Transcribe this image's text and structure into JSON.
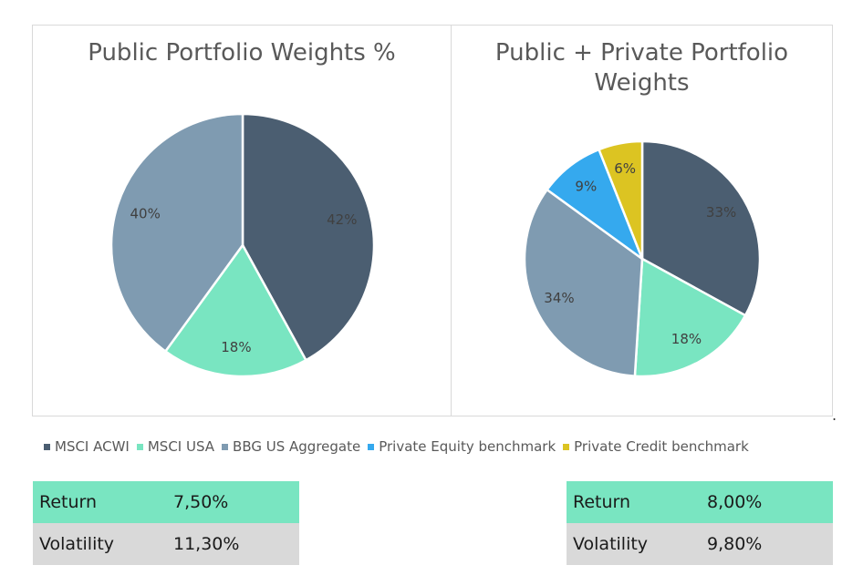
{
  "chart_data": [
    {
      "type": "pie",
      "title": "Public Portfolio Weights %",
      "slices": [
        {
          "label": "MSCI ACWI",
          "value": 42,
          "display": "42%",
          "color": "#4b5e71"
        },
        {
          "label": "MSCI USA",
          "value": 18,
          "display": "18%",
          "color": "#79e5c1"
        },
        {
          "label": "BBG US Aggregate",
          "value": 40,
          "display": "40%",
          "color": "#7f9bb1"
        }
      ]
    },
    {
      "type": "pie",
      "title": "Public + Private Portfolio Weights",
      "slices": [
        {
          "label": "MSCI ACWI",
          "value": 33,
          "display": "33%",
          "color": "#4b5e71"
        },
        {
          "label": "MSCI USA",
          "value": 18,
          "display": "18%",
          "color": "#79e5c1"
        },
        {
          "label": "BBG US Aggregate",
          "value": 34,
          "display": "34%",
          "color": "#7f9bb1"
        },
        {
          "label": "Private Equity benchmark",
          "value": 9,
          "display": "9%",
          "color": "#35a9ee"
        },
        {
          "label": "Private Credit benchmark",
          "value": 6,
          "display": "6%",
          "color": "#dcc422"
        }
      ]
    }
  ],
  "legend": [
    {
      "label": "MSCI ACWI",
      "color": "#4b5e71"
    },
    {
      "label": "MSCI USA",
      "color": "#79e5c1"
    },
    {
      "label": "BBG US Aggregate",
      "color": "#7f9bb1"
    },
    {
      "label": "Private Equity benchmark",
      "color": "#35a9ee"
    },
    {
      "label": "Private Credit benchmark",
      "color": "#dcc422"
    }
  ],
  "stats_left": {
    "return_label": "Return",
    "return_value": "7,50%",
    "volatility_label": "Volatility",
    "volatility_value": "11,30%"
  },
  "stats_right": {
    "return_label": "Return",
    "return_value": "8,00%",
    "volatility_label": "Volatility",
    "volatility_value": "9,80%"
  },
  "stray_mark": "."
}
